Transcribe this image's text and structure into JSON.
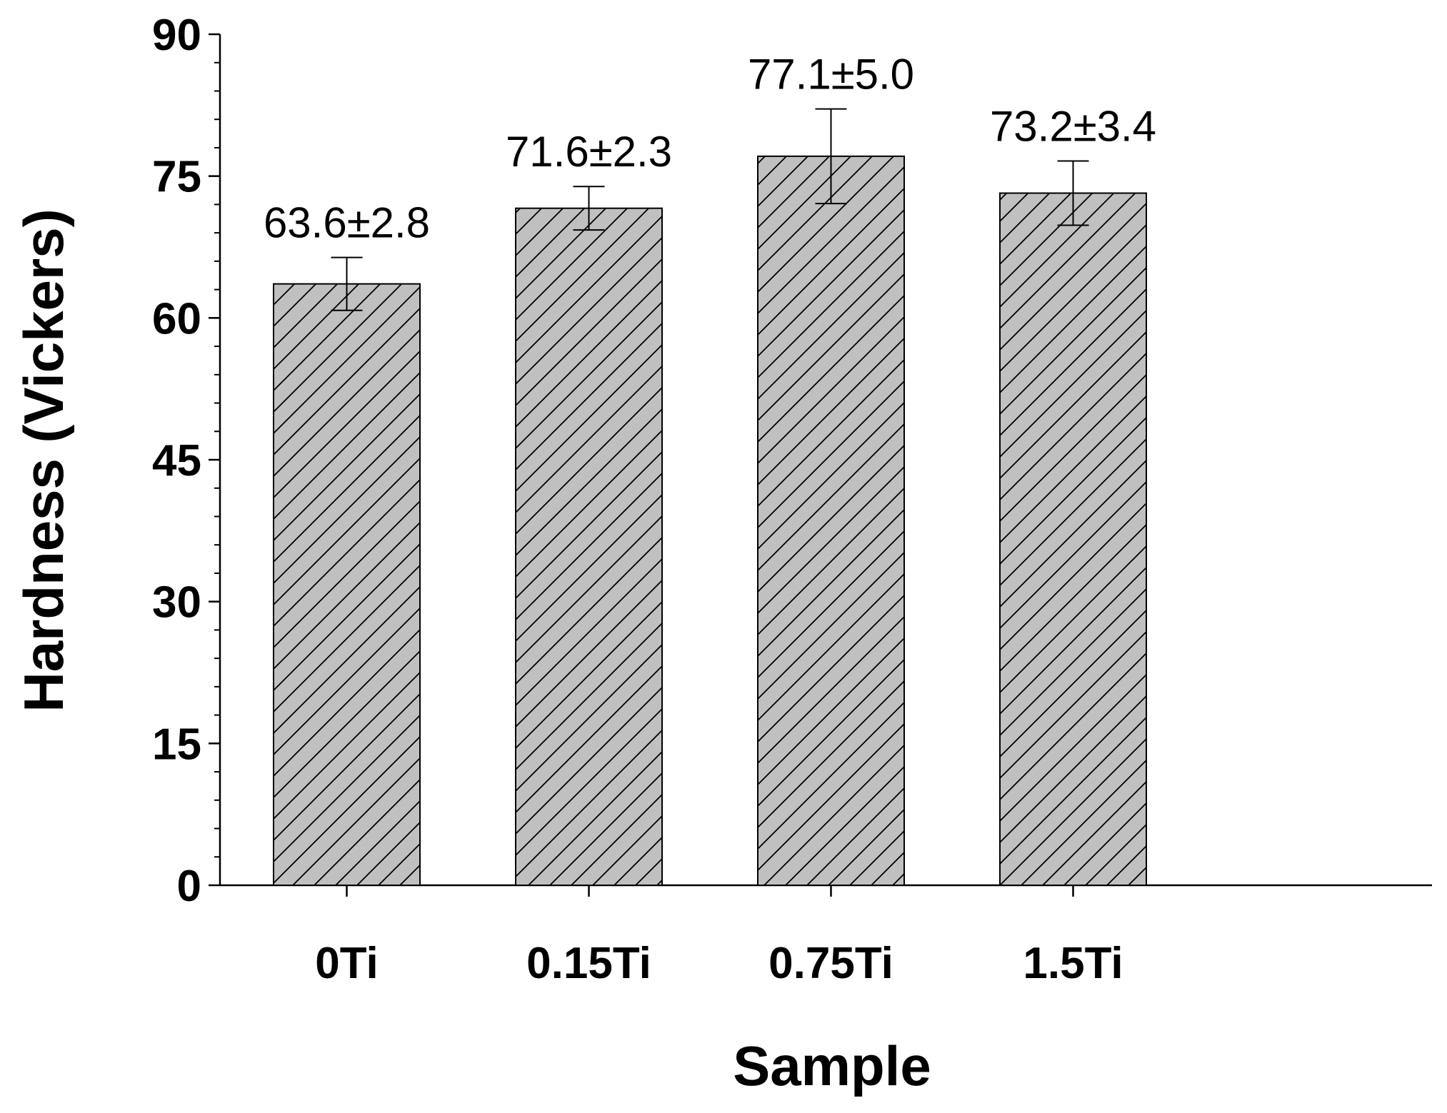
{
  "chart_data": {
    "type": "bar",
    "categories": [
      "0Ti",
      "0.15Ti",
      "0.75Ti",
      "1.5Ti"
    ],
    "values": [
      63.6,
      71.6,
      77.1,
      73.2
    ],
    "errors": [
      2.8,
      2.3,
      5.0,
      3.4
    ],
    "data_labels": [
      "63.6±2.8",
      "71.6±2.3",
      "77.1±5.0",
      "73.2±3.4"
    ],
    "xlabel": "Sample",
    "ylabel": "Hardness (Vickers)",
    "ylim": [
      0,
      90
    ],
    "yticks": [
      0,
      15,
      30,
      45,
      60,
      75,
      90
    ],
    "grid": false,
    "legend": "none",
    "bar_fill": "#c0c0c0",
    "hatch": "diagonal"
  }
}
